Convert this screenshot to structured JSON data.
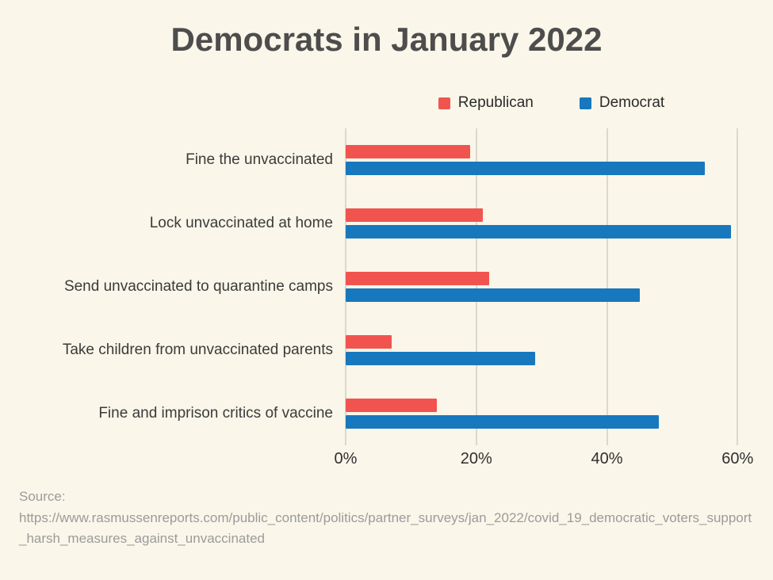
{
  "title": "Democrats in January 2022",
  "legend": [
    {
      "label": "Republican",
      "color": "#f1544f"
    },
    {
      "label": "Democrat",
      "color": "#1878be"
    }
  ],
  "chart_data": {
    "type": "bar",
    "orientation": "horizontal",
    "title": "Democrats in January 2022",
    "xlabel": "",
    "ylabel": "",
    "categories": [
      "Fine the unvaccinated",
      "Lock unvaccinated at home",
      "Send unvaccinated to quarantine camps",
      "Take children from unvaccinated parents",
      "Fine and imprison critics of vaccine"
    ],
    "series": [
      {
        "name": "Republican",
        "color": "#f1544f",
        "values": [
          19,
          21,
          22,
          7,
          14
        ]
      },
      {
        "name": "Democrat",
        "color": "#1878be",
        "values": [
          55,
          59,
          45,
          29,
          48
        ]
      }
    ],
    "x_ticks": [
      "0%",
      "20%",
      "40%",
      "60%"
    ],
    "x_tick_values": [
      0,
      20,
      40,
      60
    ],
    "xlim": [
      0,
      63
    ],
    "grid": "vertical",
    "legend_position": "top"
  },
  "source": {
    "label": "Source:",
    "url": "https://www.rasmussenreports.com/public_content/politics/partner_surveys/jan_2022/covid_19_democratic_voters_support_harsh_measures_against_unvaccinated"
  }
}
